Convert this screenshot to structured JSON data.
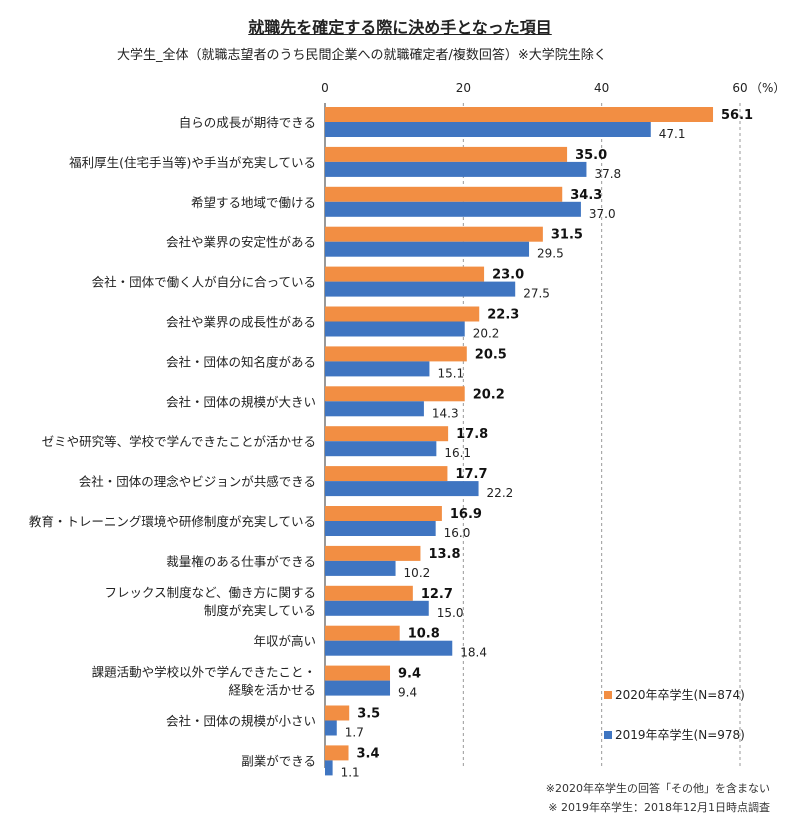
{
  "title": "就職先を確定する際に決め手となった項目",
  "subtitle": "大学生_全体（就職志望者のうち民間企業への就職確定者/複数回答）※大学院生除く",
  "notes": [
    "※2020年卒学生の回答「その他」を含まない",
    "※ 2019年卒学生：2018年12月1日時点調査"
  ],
  "colors": {
    "series_2020": "#F28E43",
    "series_2019": "#3F75C1",
    "grid": "#999999"
  },
  "chart_data": {
    "type": "bar",
    "orientation": "horizontal",
    "unit": "（%）",
    "xlim": [
      0,
      60
    ],
    "xticks": [
      0,
      20,
      40,
      60
    ],
    "grid": true,
    "legend_position": "bottom-right",
    "categories": [
      "自らの成長が期待できる",
      "福利厚生(住宅手当等)や手当が充実している",
      "希望する地域で働ける",
      "会社や業界の安定性がある",
      "会社・団体で働く人が自分に合っている",
      "会社や業界の成長性がある",
      "会社・団体の知名度がある",
      "会社・団体の規模が大きい",
      "ゼミや研究等、学校で学んできたことが活かせる",
      "会社・団体の理念やビジョンが共感できる",
      "教育・トレーニング環境や研修制度が充実している",
      "裁量権のある仕事ができる",
      "フレックス制度など、働き方に関する\n制度が充実している",
      "年収が高い",
      "課題活動や学校以外で学んできたこと・\n経験を活かせる",
      "会社・団体の規模が小さい",
      "副業ができる"
    ],
    "series": [
      {
        "name": "2020年卒学生(N=874)",
        "values": [
          56.1,
          35.0,
          34.3,
          31.5,
          23.0,
          22.3,
          20.5,
          20.2,
          17.8,
          17.7,
          16.9,
          13.8,
          12.7,
          10.8,
          9.4,
          3.5,
          3.4
        ]
      },
      {
        "name": "2019年卒学生(N=978)",
        "values": [
          47.1,
          37.8,
          37.0,
          29.5,
          27.5,
          20.2,
          15.1,
          14.3,
          16.1,
          22.2,
          16.0,
          10.2,
          15.0,
          18.4,
          9.4,
          1.7,
          1.1
        ]
      }
    ]
  }
}
